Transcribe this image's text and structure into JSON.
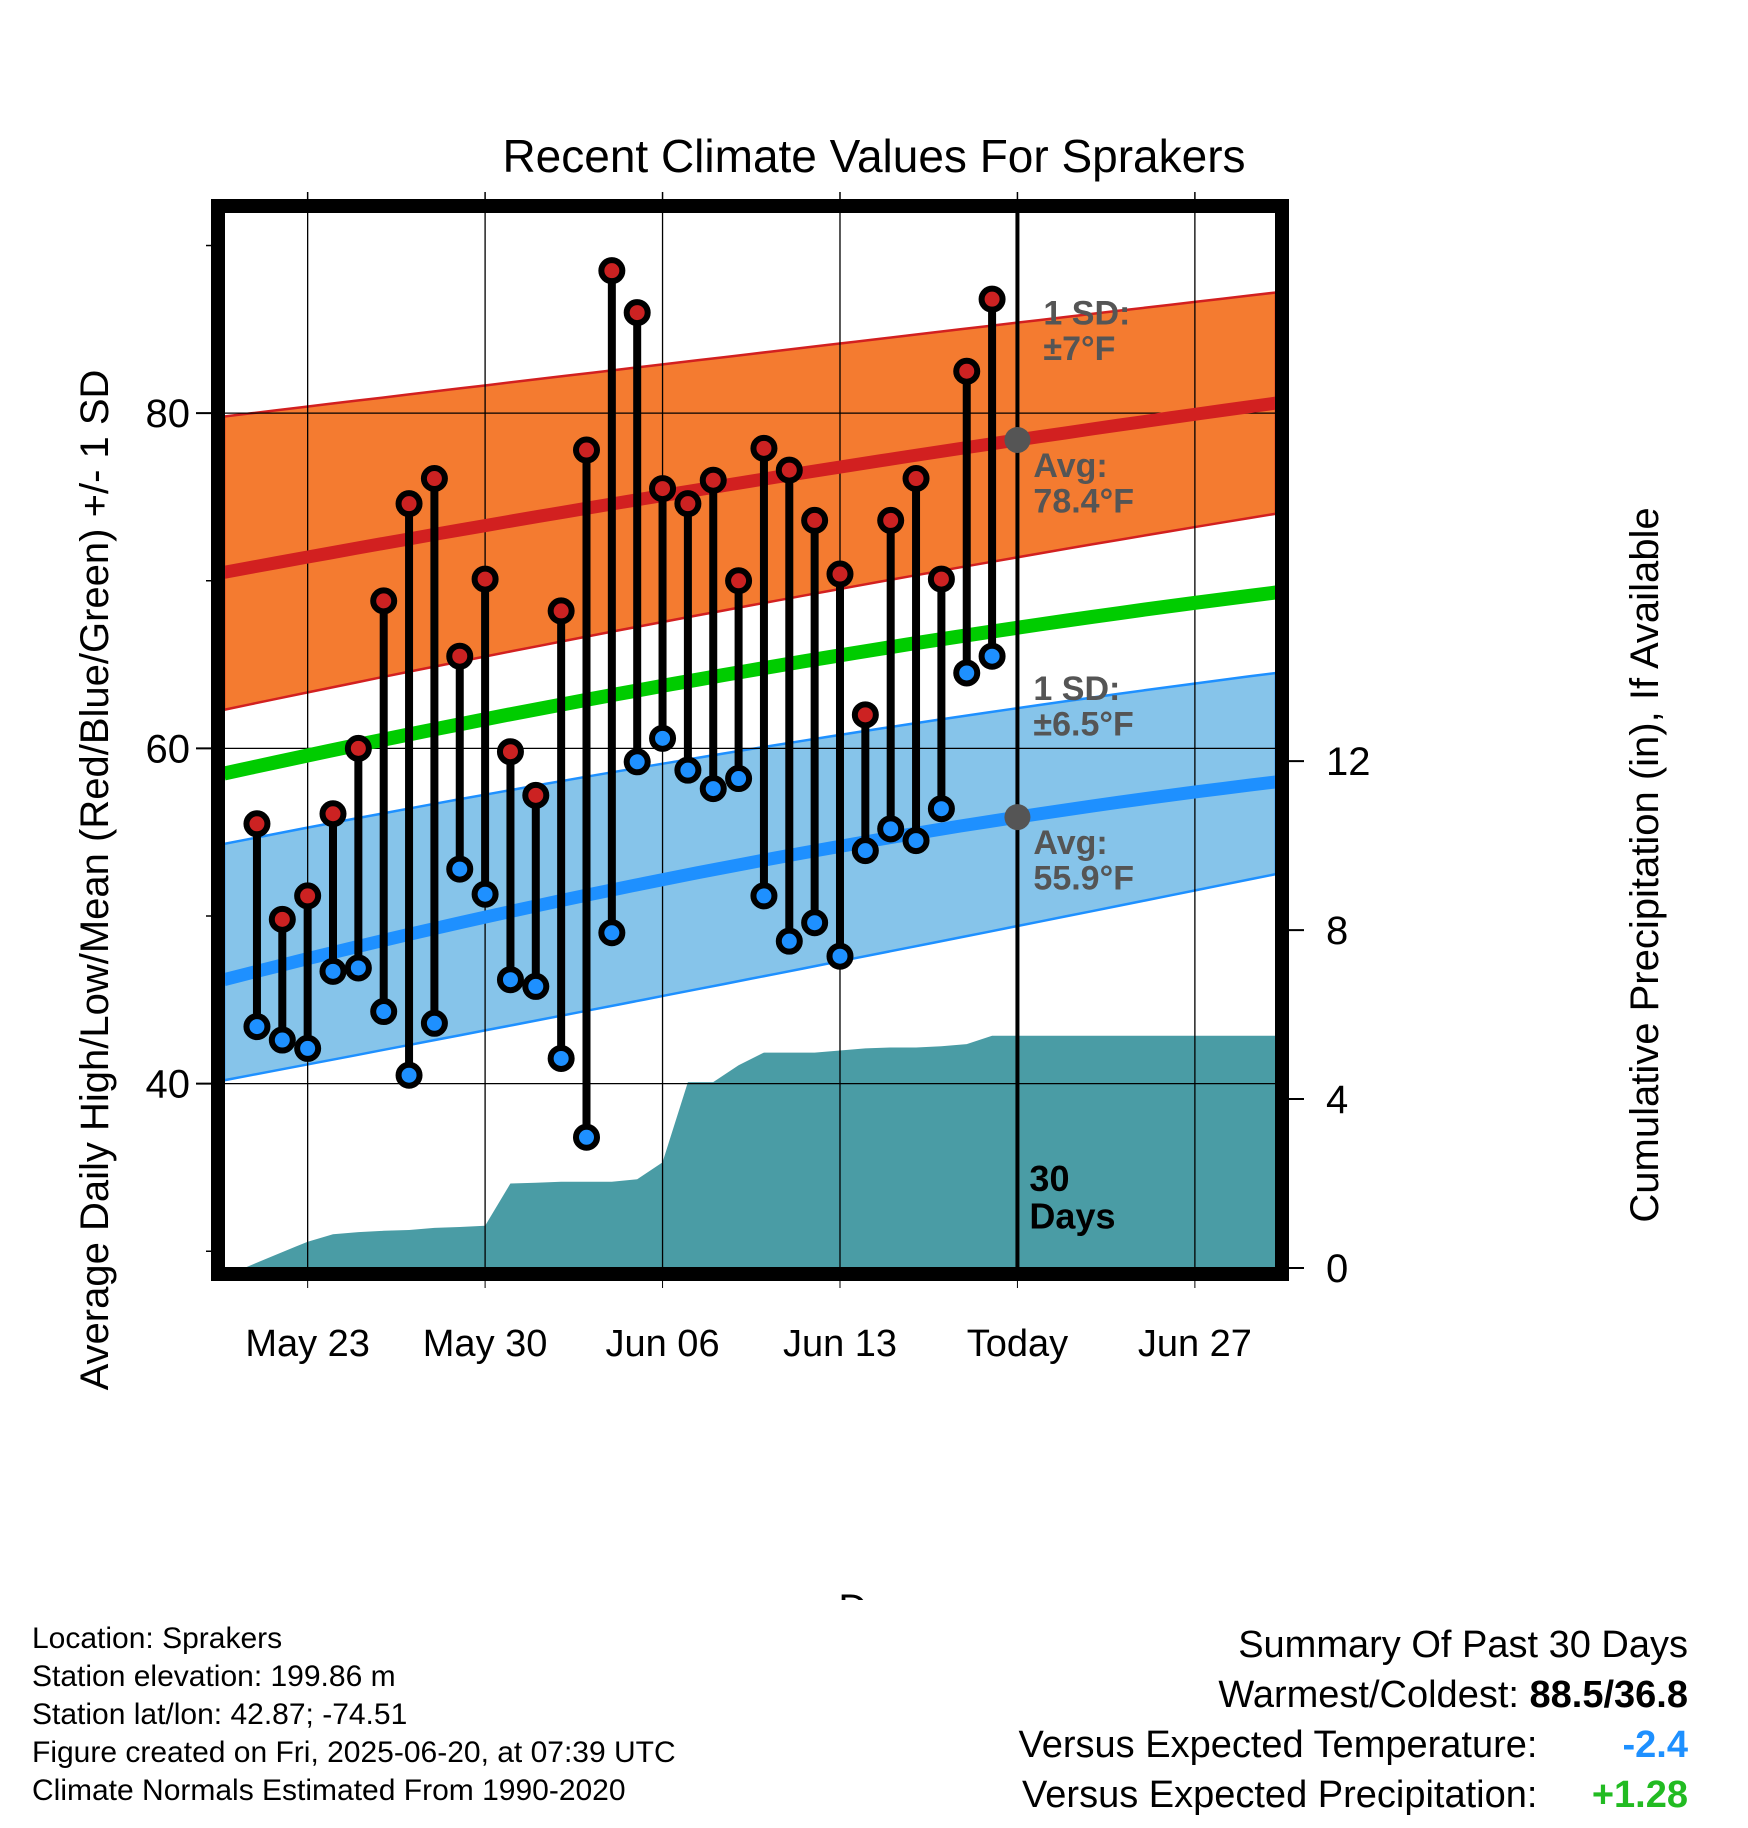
{
  "chart_data": {
    "type": "line",
    "title": "Recent Climate Values For Sprakers",
    "xlabel": "Day",
    "ylabel_left": "Average Daily High/Low/Mean (Red/Blue/Green) +/- 1 SD",
    "ylabel_right": "Cumulative Precipitation (in), If Available",
    "x_ticks": [
      {
        "day": 4,
        "label": "May 23"
      },
      {
        "day": 11,
        "label": "May 30"
      },
      {
        "day": 18,
        "label": "Jun 06"
      },
      {
        "day": 25,
        "label": "Jun 13"
      },
      {
        "day": 32,
        "label": "Today"
      },
      {
        "day": 39,
        "label": "Jun 27"
      }
    ],
    "x_range": [
      "2025-05-19",
      "2025-07-01"
    ],
    "x_range_days": [
      0.7,
      42.2
    ],
    "y_left_range": [
      29,
      92
    ],
    "y_left_ticks": [
      40,
      60,
      80
    ],
    "y_left_minor_ticks": [
      30,
      50,
      70,
      90
    ],
    "y_right_range": [
      0,
      25
    ],
    "y_right_ticks": [
      0,
      4,
      8,
      12
    ],
    "grid": true,
    "today_day": 32,
    "today_label_line1": "30",
    "today_label_line2": "Days",
    "colors": {
      "high_band": "#f47b30",
      "high_line": "#d22020",
      "high_dot": "#cc2222",
      "low_band": "#86c4ea",
      "low_line": "#1e90ff",
      "low_dot": "#1e90ff",
      "mean_line": "#00cc00",
      "precip": "#4a9ca5",
      "annotation": "#555555"
    },
    "normal_high": {
      "mean": [
        [
          0.7,
          70.5
        ],
        [
          32,
          78.4
        ],
        [
          42.2,
          80.6
        ]
      ],
      "upper": [
        [
          0.7,
          79.8
        ],
        [
          32,
          85.4
        ],
        [
          42.2,
          87.2
        ]
      ],
      "lower": [
        [
          0.7,
          62.3
        ],
        [
          32,
          71.4
        ],
        [
          42.2,
          74.0
        ]
      ]
    },
    "normal_low": {
      "mean": [
        [
          0.7,
          46.2
        ],
        [
          32,
          55.9
        ],
        [
          42.2,
          58.0
        ]
      ],
      "upper": [
        [
          0.7,
          54.3
        ],
        [
          32,
          62.4
        ],
        [
          42.2,
          64.5
        ]
      ],
      "lower": [
        [
          0.7,
          40.2
        ],
        [
          32,
          49.4
        ],
        [
          42.2,
          52.5
        ]
      ]
    },
    "normal_mean": [
      [
        0.7,
        58.5
      ],
      [
        32,
        67.2
      ],
      [
        42.2,
        69.3
      ]
    ],
    "sd_high_label": [
      "1 SD:",
      "±7°F"
    ],
    "sd_low_label": [
      "1 SD:",
      "±6.5°F"
    ],
    "avg_high_label": [
      "Avg:",
      "78.4°F"
    ],
    "avg_low_label": [
      "Avg:",
      "55.9°F"
    ],
    "daily": [
      {
        "day": 2,
        "high": 55.5,
        "low": 43.4
      },
      {
        "day": 3,
        "high": 49.8,
        "low": 42.6
      },
      {
        "day": 4,
        "high": 51.2,
        "low": 42.1
      },
      {
        "day": 5,
        "high": 56.1,
        "low": 46.7
      },
      {
        "day": 6,
        "high": 60.0,
        "low": 46.9
      },
      {
        "day": 7,
        "high": 68.8,
        "low": 44.3
      },
      {
        "day": 8,
        "high": 74.6,
        "low": 40.5
      },
      {
        "day": 9,
        "high": 76.1,
        "low": 43.6
      },
      {
        "day": 10,
        "high": 65.5,
        "low": 52.8
      },
      {
        "day": 11,
        "high": 70.1,
        "low": 51.3
      },
      {
        "day": 12,
        "high": 59.8,
        "low": 46.2
      },
      {
        "day": 13,
        "high": 57.2,
        "low": 45.8
      },
      {
        "day": 14,
        "high": 68.2,
        "low": 41.5
      },
      {
        "day": 15,
        "high": 77.8,
        "low": 36.8
      },
      {
        "day": 16,
        "high": 88.5,
        "low": 49.0
      },
      {
        "day": 17,
        "high": 86.0,
        "low": 59.2
      },
      {
        "day": 18,
        "high": 75.5,
        "low": 60.6
      },
      {
        "day": 19,
        "high": 74.6,
        "low": 58.7
      },
      {
        "day": 20,
        "high": 76.0,
        "low": 57.6
      },
      {
        "day": 21,
        "high": 70.0,
        "low": 58.2
      },
      {
        "day": 22,
        "high": 77.9,
        "low": 51.2
      },
      {
        "day": 23,
        "high": 76.6,
        "low": 48.5
      },
      {
        "day": 24,
        "high": 73.6,
        "low": 49.6
      },
      {
        "day": 25,
        "high": 70.4,
        "low": 47.6
      },
      {
        "day": 26,
        "high": 62.0,
        "low": 53.9
      },
      {
        "day": 27,
        "high": 73.6,
        "low": 55.2
      },
      {
        "day": 28,
        "high": 76.1,
        "low": 54.5
      },
      {
        "day": 29,
        "high": 70.1,
        "low": 56.4
      },
      {
        "day": 30,
        "high": 82.5,
        "low": 64.5
      },
      {
        "day": 31,
        "high": 86.8,
        "low": 65.5
      }
    ],
    "precip_cumulative": [
      [
        1.5,
        0.0
      ],
      [
        2.5,
        0.25
      ],
      [
        3.5,
        0.5
      ],
      [
        4,
        0.62
      ],
      [
        5,
        0.8
      ],
      [
        6,
        0.85
      ],
      [
        7,
        0.88
      ],
      [
        8,
        0.9
      ],
      [
        9,
        0.95
      ],
      [
        10,
        0.97
      ],
      [
        11,
        1.0
      ],
      [
        12,
        2.0
      ],
      [
        13,
        2.02
      ],
      [
        14,
        2.04
      ],
      [
        15,
        2.04
      ],
      [
        16,
        2.04
      ],
      [
        17,
        2.1
      ],
      [
        18,
        2.5
      ],
      [
        19,
        4.4
      ],
      [
        20,
        4.4
      ],
      [
        21,
        4.8
      ],
      [
        22,
        5.1
      ],
      [
        23,
        5.1
      ],
      [
        24,
        5.1
      ],
      [
        25,
        5.15
      ],
      [
        26,
        5.2
      ],
      [
        27,
        5.22
      ],
      [
        28,
        5.22
      ],
      [
        29,
        5.25
      ],
      [
        30,
        5.3
      ],
      [
        31,
        5.5
      ],
      [
        32,
        5.5
      ],
      [
        42.2,
        5.5
      ]
    ]
  },
  "footer": {
    "location": "Location: Sprakers",
    "elevation": "Station elevation: 199.86 m",
    "latlon": "Station lat/lon: 42.87; -74.51",
    "created": "Figure created on Fri, 2025-06-20, at 07:39 UTC",
    "normals": "Climate Normals Estimated From 1990-2020"
  },
  "summary": {
    "title": "Summary Of Past 30 Days",
    "warmest_label": "Warmest/Coldest:",
    "warmest_value": "88.5/36.8",
    "temp_label": "Versus Expected Temperature:",
    "temp_value": "-2.4",
    "precip_label": "Versus Expected Precipitation:",
    "precip_value": "+1.28"
  }
}
